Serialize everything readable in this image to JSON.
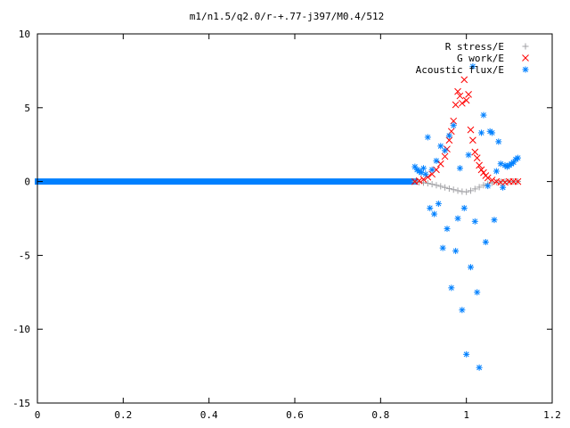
{
  "chart_data": {
    "type": "scatter",
    "title": "m1/n1.5/q2.0/r-+.77-j397/M0.4/512",
    "xlabel": "",
    "ylabel": "",
    "xlim": [
      0,
      1.2
    ],
    "ylim": [
      -15,
      10
    ],
    "x_ticks": [
      "0",
      "0.2",
      "0.4",
      "0.6",
      "0.8",
      "1",
      "1.2"
    ],
    "y_ticks": [
      "10",
      "5",
      "0",
      "-5",
      "-10",
      "-15"
    ],
    "grid": false,
    "legend_position": "top-right",
    "series": [
      {
        "name": "R stress/E",
        "color": "#a0a0a4",
        "marker": "plus",
        "x": [
          0.88,
          0.89,
          0.9,
          0.91,
          0.92,
          0.93,
          0.94,
          0.95,
          0.96,
          0.97,
          0.98,
          0.99,
          1.0,
          1.01,
          1.02,
          1.03,
          1.04,
          1.05,
          1.06,
          1.07,
          1.08,
          1.09,
          1.1,
          1.11,
          1.12
        ],
        "values": [
          0.0,
          -0.05,
          -0.08,
          -0.12,
          -0.18,
          -0.25,
          -0.32,
          -0.4,
          -0.48,
          -0.55,
          -0.62,
          -0.68,
          -0.7,
          -0.62,
          -0.5,
          -0.38,
          -0.25,
          -0.15,
          -0.08,
          -0.04,
          -0.02,
          0.0,
          0.0,
          0.0,
          0.0
        ]
      },
      {
        "name": "G work/E",
        "color": "#ff0000",
        "marker": "cross",
        "x": [
          0.88,
          0.89,
          0.9,
          0.91,
          0.92,
          0.93,
          0.94,
          0.95,
          0.955,
          0.96,
          0.965,
          0.97,
          0.975,
          0.98,
          0.985,
          0.99,
          0.995,
          1.0,
          1.005,
          1.01,
          1.015,
          1.02,
          1.025,
          1.03,
          1.035,
          1.04,
          1.045,
          1.05,
          1.06,
          1.07,
          1.08,
          1.09,
          1.1,
          1.11,
          1.12
        ],
        "values": [
          0.0,
          0.05,
          0.15,
          0.3,
          0.5,
          0.8,
          1.2,
          1.7,
          2.2,
          2.8,
          3.4,
          4.1,
          5.2,
          6.1,
          5.8,
          5.3,
          6.9,
          5.5,
          5.9,
          3.5,
          2.8,
          2.0,
          1.6,
          1.1,
          0.8,
          0.6,
          0.4,
          0.25,
          0.1,
          0.0,
          -0.05,
          -0.05,
          0.0,
          0.0,
          0.0
        ]
      },
      {
        "name": "Acoustic flux/E",
        "color": "#0080ff",
        "marker": "star",
        "x": [
          0.88,
          0.885,
          0.89,
          0.895,
          0.9,
          0.905,
          0.91,
          0.915,
          0.92,
          0.925,
          0.93,
          0.935,
          0.94,
          0.945,
          0.95,
          0.955,
          0.96,
          0.965,
          0.97,
          0.975,
          0.98,
          0.985,
          0.99,
          0.995,
          1.0,
          1.005,
          1.01,
          1.015,
          1.02,
          1.025,
          1.03,
          1.035,
          1.04,
          1.045,
          1.05,
          1.055,
          1.06,
          1.065,
          1.07,
          1.075,
          1.08,
          1.085,
          1.09,
          1.095,
          1.1,
          1.105,
          1.11,
          1.115,
          1.12
        ],
        "values": [
          1.0,
          0.8,
          0.7,
          0.6,
          0.9,
          0.5,
          3.0,
          -1.8,
          0.8,
          -2.2,
          1.4,
          -1.5,
          2.4,
          -4.5,
          2.1,
          -3.2,
          3.1,
          -7.2,
          3.8,
          -4.7,
          -2.5,
          0.9,
          -8.7,
          -1.8,
          -11.7,
          1.8,
          -5.8,
          7.8,
          -2.7,
          -7.5,
          -12.6,
          3.3,
          4.5,
          -4.1,
          -0.3,
          3.4,
          3.3,
          -2.6,
          0.7,
          2.7,
          1.2,
          -0.4,
          1.1,
          1.0,
          1.1,
          1.2,
          1.3,
          1.5,
          1.6
        ]
      }
    ],
    "flat_segment": {
      "series_index": 2,
      "x_from": 0.0,
      "x_to": 0.88,
      "value": 0
    }
  }
}
